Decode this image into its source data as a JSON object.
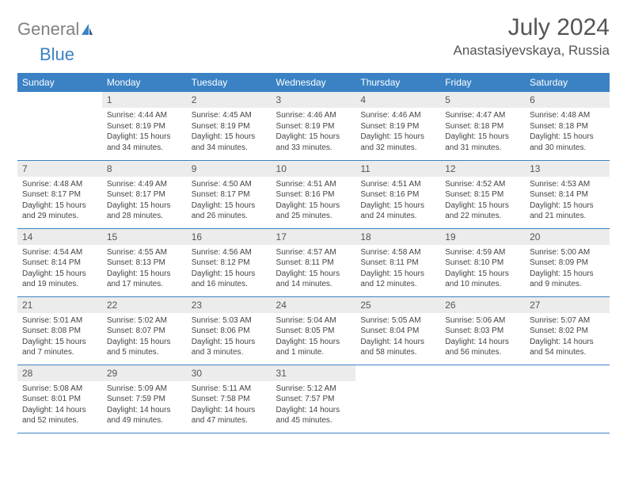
{
  "brand": {
    "text1": "General",
    "text2": "Blue"
  },
  "title": "July 2024",
  "location": "Anastasiyevskaya, Russia",
  "colors": {
    "header_bg": "#3b82c4",
    "header_text": "#ffffff",
    "daynum_bg": "#ececec",
    "border": "#3b82c4",
    "logo_gray": "#808080",
    "logo_blue": "#3b82c4"
  },
  "weekdays": [
    "Sunday",
    "Monday",
    "Tuesday",
    "Wednesday",
    "Thursday",
    "Friday",
    "Saturday"
  ],
  "weeks": [
    [
      null,
      {
        "n": "1",
        "sr": "Sunrise: 4:44 AM",
        "ss": "Sunset: 8:19 PM",
        "d1": "Daylight: 15 hours",
        "d2": "and 34 minutes."
      },
      {
        "n": "2",
        "sr": "Sunrise: 4:45 AM",
        "ss": "Sunset: 8:19 PM",
        "d1": "Daylight: 15 hours",
        "d2": "and 34 minutes."
      },
      {
        "n": "3",
        "sr": "Sunrise: 4:46 AM",
        "ss": "Sunset: 8:19 PM",
        "d1": "Daylight: 15 hours",
        "d2": "and 33 minutes."
      },
      {
        "n": "4",
        "sr": "Sunrise: 4:46 AM",
        "ss": "Sunset: 8:19 PM",
        "d1": "Daylight: 15 hours",
        "d2": "and 32 minutes."
      },
      {
        "n": "5",
        "sr": "Sunrise: 4:47 AM",
        "ss": "Sunset: 8:18 PM",
        "d1": "Daylight: 15 hours",
        "d2": "and 31 minutes."
      },
      {
        "n": "6",
        "sr": "Sunrise: 4:48 AM",
        "ss": "Sunset: 8:18 PM",
        "d1": "Daylight: 15 hours",
        "d2": "and 30 minutes."
      }
    ],
    [
      {
        "n": "7",
        "sr": "Sunrise: 4:48 AM",
        "ss": "Sunset: 8:17 PM",
        "d1": "Daylight: 15 hours",
        "d2": "and 29 minutes."
      },
      {
        "n": "8",
        "sr": "Sunrise: 4:49 AM",
        "ss": "Sunset: 8:17 PM",
        "d1": "Daylight: 15 hours",
        "d2": "and 28 minutes."
      },
      {
        "n": "9",
        "sr": "Sunrise: 4:50 AM",
        "ss": "Sunset: 8:17 PM",
        "d1": "Daylight: 15 hours",
        "d2": "and 26 minutes."
      },
      {
        "n": "10",
        "sr": "Sunrise: 4:51 AM",
        "ss": "Sunset: 8:16 PM",
        "d1": "Daylight: 15 hours",
        "d2": "and 25 minutes."
      },
      {
        "n": "11",
        "sr": "Sunrise: 4:51 AM",
        "ss": "Sunset: 8:16 PM",
        "d1": "Daylight: 15 hours",
        "d2": "and 24 minutes."
      },
      {
        "n": "12",
        "sr": "Sunrise: 4:52 AM",
        "ss": "Sunset: 8:15 PM",
        "d1": "Daylight: 15 hours",
        "d2": "and 22 minutes."
      },
      {
        "n": "13",
        "sr": "Sunrise: 4:53 AM",
        "ss": "Sunset: 8:14 PM",
        "d1": "Daylight: 15 hours",
        "d2": "and 21 minutes."
      }
    ],
    [
      {
        "n": "14",
        "sr": "Sunrise: 4:54 AM",
        "ss": "Sunset: 8:14 PM",
        "d1": "Daylight: 15 hours",
        "d2": "and 19 minutes."
      },
      {
        "n": "15",
        "sr": "Sunrise: 4:55 AM",
        "ss": "Sunset: 8:13 PM",
        "d1": "Daylight: 15 hours",
        "d2": "and 17 minutes."
      },
      {
        "n": "16",
        "sr": "Sunrise: 4:56 AM",
        "ss": "Sunset: 8:12 PM",
        "d1": "Daylight: 15 hours",
        "d2": "and 16 minutes."
      },
      {
        "n": "17",
        "sr": "Sunrise: 4:57 AM",
        "ss": "Sunset: 8:11 PM",
        "d1": "Daylight: 15 hours",
        "d2": "and 14 minutes."
      },
      {
        "n": "18",
        "sr": "Sunrise: 4:58 AM",
        "ss": "Sunset: 8:11 PM",
        "d1": "Daylight: 15 hours",
        "d2": "and 12 minutes."
      },
      {
        "n": "19",
        "sr": "Sunrise: 4:59 AM",
        "ss": "Sunset: 8:10 PM",
        "d1": "Daylight: 15 hours",
        "d2": "and 10 minutes."
      },
      {
        "n": "20",
        "sr": "Sunrise: 5:00 AM",
        "ss": "Sunset: 8:09 PM",
        "d1": "Daylight: 15 hours",
        "d2": "and 9 minutes."
      }
    ],
    [
      {
        "n": "21",
        "sr": "Sunrise: 5:01 AM",
        "ss": "Sunset: 8:08 PM",
        "d1": "Daylight: 15 hours",
        "d2": "and 7 minutes."
      },
      {
        "n": "22",
        "sr": "Sunrise: 5:02 AM",
        "ss": "Sunset: 8:07 PM",
        "d1": "Daylight: 15 hours",
        "d2": "and 5 minutes."
      },
      {
        "n": "23",
        "sr": "Sunrise: 5:03 AM",
        "ss": "Sunset: 8:06 PM",
        "d1": "Daylight: 15 hours",
        "d2": "and 3 minutes."
      },
      {
        "n": "24",
        "sr": "Sunrise: 5:04 AM",
        "ss": "Sunset: 8:05 PM",
        "d1": "Daylight: 15 hours",
        "d2": "and 1 minute."
      },
      {
        "n": "25",
        "sr": "Sunrise: 5:05 AM",
        "ss": "Sunset: 8:04 PM",
        "d1": "Daylight: 14 hours",
        "d2": "and 58 minutes."
      },
      {
        "n": "26",
        "sr": "Sunrise: 5:06 AM",
        "ss": "Sunset: 8:03 PM",
        "d1": "Daylight: 14 hours",
        "d2": "and 56 minutes."
      },
      {
        "n": "27",
        "sr": "Sunrise: 5:07 AM",
        "ss": "Sunset: 8:02 PM",
        "d1": "Daylight: 14 hours",
        "d2": "and 54 minutes."
      }
    ],
    [
      {
        "n": "28",
        "sr": "Sunrise: 5:08 AM",
        "ss": "Sunset: 8:01 PM",
        "d1": "Daylight: 14 hours",
        "d2": "and 52 minutes."
      },
      {
        "n": "29",
        "sr": "Sunrise: 5:09 AM",
        "ss": "Sunset: 7:59 PM",
        "d1": "Daylight: 14 hours",
        "d2": "and 49 minutes."
      },
      {
        "n": "30",
        "sr": "Sunrise: 5:11 AM",
        "ss": "Sunset: 7:58 PM",
        "d1": "Daylight: 14 hours",
        "d2": "and 47 minutes."
      },
      {
        "n": "31",
        "sr": "Sunrise: 5:12 AM",
        "ss": "Sunset: 7:57 PM",
        "d1": "Daylight: 14 hours",
        "d2": "and 45 minutes."
      },
      null,
      null,
      null
    ]
  ]
}
